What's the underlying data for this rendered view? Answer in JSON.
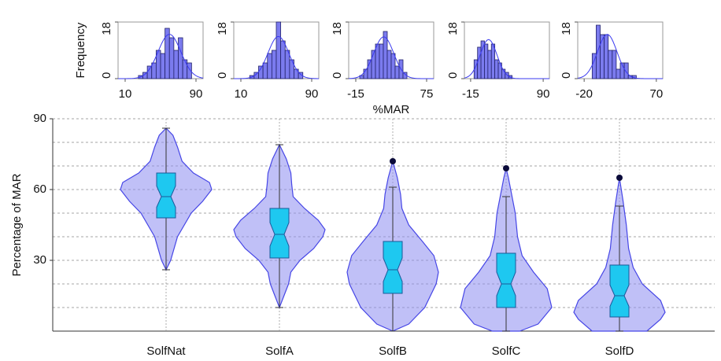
{
  "chart_data": [
    {
      "type": "histogram",
      "ylabel": "Frequency",
      "bins": [
        25,
        30,
        35,
        40,
        45,
        50,
        55,
        60,
        65,
        70,
        75,
        80,
        85
      ],
      "counts": [
        1,
        2,
        4,
        5,
        9,
        8,
        16,
        13,
        9,
        13,
        6,
        5
      ],
      "xlim": [
        2,
        98
      ],
      "xticks": [
        10,
        90
      ],
      "ylim": [
        0,
        18
      ],
      "yticks": [
        0,
        18
      ],
      "color": "#7b7bee"
    },
    {
      "type": "histogram",
      "bins": [
        20,
        25,
        30,
        35,
        40,
        45,
        50,
        55,
        60,
        65,
        70,
        75,
        80
      ],
      "counts": [
        1,
        2,
        4,
        5,
        8,
        9,
        18,
        12,
        9,
        6,
        3,
        2
      ],
      "xlim": [
        2,
        98
      ],
      "xticks": [
        10,
        90
      ],
      "ylim": [
        0,
        18
      ],
      "yticks": [
        0,
        18
      ],
      "color": "#7b7bee"
    },
    {
      "type": "histogram",
      "xlabel": "%MAR",
      "bins": [
        -10,
        -5,
        0,
        5,
        10,
        15,
        20,
        25,
        30,
        35,
        40,
        45,
        50
      ],
      "counts": [
        1,
        3,
        6,
        9,
        11,
        11,
        15,
        9,
        8,
        4,
        6,
        2
      ],
      "xlim": [
        -24,
        84
      ],
      "xticks": [
        -15,
        75
      ],
      "ylim": [
        0,
        18
      ],
      "yticks": [
        0,
        18
      ],
      "color": "#7b7bee"
    },
    {
      "type": "histogram",
      "bins": [
        -10,
        -5,
        0,
        5,
        10,
        15,
        20,
        25,
        30,
        35,
        40,
        45
      ],
      "counts": [
        6,
        10,
        12,
        11,
        9,
        11,
        6,
        5,
        3,
        2,
        1
      ],
      "xlim": [
        -24,
        99
      ],
      "xticks": [
        -15,
        90
      ],
      "ylim": [
        0,
        18
      ],
      "yticks": [
        0,
        18
      ],
      "color": "#7b7bee"
    },
    {
      "type": "histogram",
      "bins": [
        -10,
        -5,
        0,
        5,
        10,
        15,
        20,
        25,
        30,
        35,
        40,
        45
      ],
      "counts": [
        8,
        17,
        14,
        14,
        9,
        9,
        3,
        5,
        5,
        1,
        1
      ],
      "xlim": [
        -28,
        78
      ],
      "xticks": [
        -20,
        70
      ],
      "ylim": [
        0,
        18
      ],
      "yticks": [
        0,
        18
      ],
      "color": "#7b7bee"
    },
    {
      "type": "violin",
      "ylabel": "Percentage of MAR",
      "categories": [
        "SolfNat",
        "SolfA",
        "SolfB",
        "SolfC",
        "SolfD"
      ],
      "ylim": [
        0,
        90
      ],
      "yticks": [
        30,
        60,
        90
      ],
      "minor_yticks": [
        10,
        20,
        40,
        50,
        70,
        80
      ],
      "grid": true,
      "violin_color": "#8c8cf0",
      "box_color": "#1ec8f0",
      "violins": [
        {
          "whisker_low": 26,
          "q1": 48,
          "median": 57,
          "q3": 67,
          "whisker_high": 86,
          "outliers": [],
          "density_y": [
            26,
            30,
            40,
            50,
            55,
            60,
            63,
            67,
            72,
            78,
            83,
            86
          ],
          "density": [
            0,
            0.1,
            0.25,
            0.55,
            0.8,
            1.0,
            0.95,
            0.6,
            0.35,
            0.25,
            0.15,
            0
          ]
        },
        {
          "whisker_low": 10,
          "q1": 31,
          "median": 41,
          "q3": 52,
          "whisker_high": 79,
          "outliers": [],
          "density_y": [
            10,
            15,
            20,
            25,
            30,
            35,
            40,
            43,
            47,
            52,
            57,
            62,
            67,
            73,
            79
          ],
          "density": [
            0,
            0.1,
            0.2,
            0.25,
            0.45,
            0.75,
            0.95,
            1.0,
            0.85,
            0.55,
            0.3,
            0.27,
            0.25,
            0.15,
            0
          ]
        },
        {
          "whisker_low": 0,
          "q1": 16,
          "median": 26,
          "q3": 38,
          "whisker_high": 61,
          "outliers": [
            72
          ],
          "density_y": [
            0,
            3,
            10,
            20,
            25,
            32,
            38,
            45,
            52,
            58,
            65,
            72
          ],
          "density": [
            0,
            0.35,
            0.7,
            0.95,
            1.0,
            0.9,
            0.65,
            0.35,
            0.2,
            0.17,
            0.1,
            0
          ]
        },
        {
          "whisker_low": 0,
          "q1": 10,
          "median": 20,
          "q3": 33,
          "whisker_high": 57,
          "outliers": [
            69
          ],
          "density_y": [
            0,
            3,
            10,
            18,
            25,
            32,
            40,
            50,
            58,
            65,
            69
          ],
          "density": [
            0.3,
            0.7,
            1.0,
            0.9,
            0.6,
            0.35,
            0.25,
            0.2,
            0.12,
            0.05,
            0
          ]
        },
        {
          "whisker_low": 0,
          "q1": 6,
          "median": 15,
          "q3": 28,
          "whisker_high": 53,
          "outliers": [
            65
          ],
          "density_y": [
            0,
            5,
            8,
            13,
            20,
            27,
            35,
            45,
            55,
            65
          ],
          "density": [
            0.6,
            0.9,
            1.0,
            0.9,
            0.5,
            0.3,
            0.2,
            0.15,
            0.08,
            0
          ]
        }
      ]
    }
  ]
}
